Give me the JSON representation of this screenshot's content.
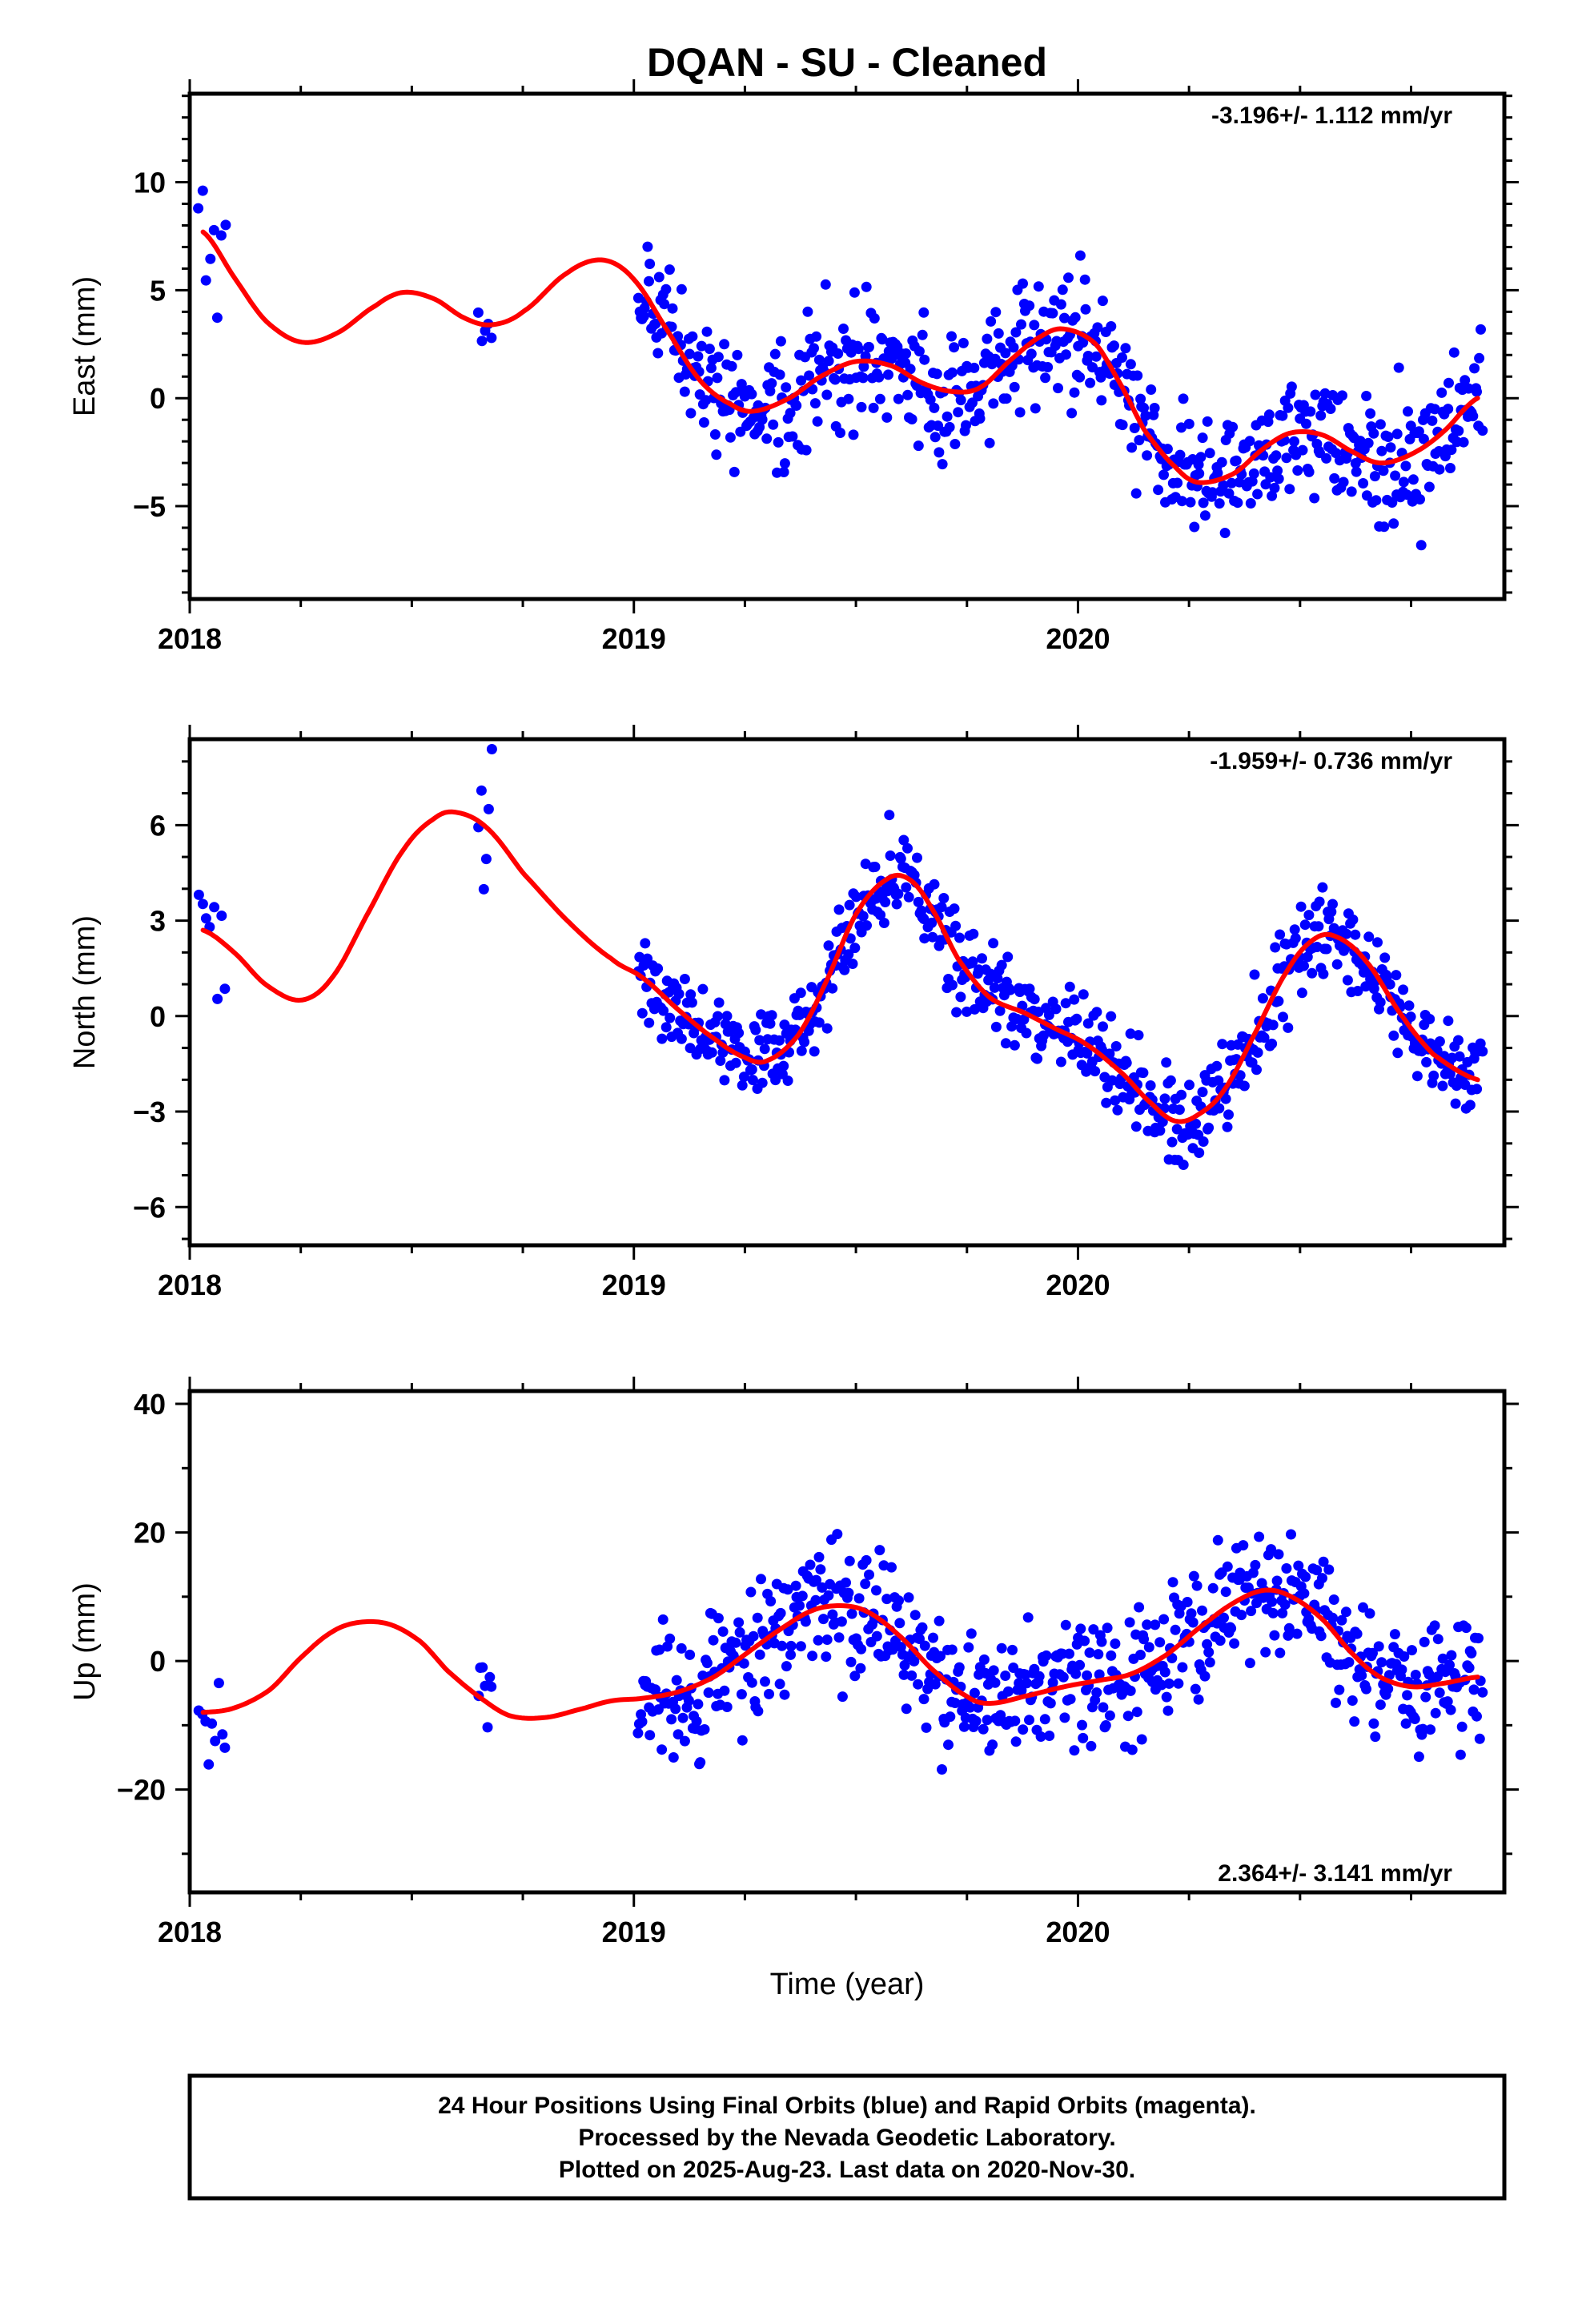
{
  "title": "DQAN  - SU - Cleaned",
  "x_axis_label": "Time (year)",
  "footer": {
    "line1": "24 Hour Positions Using Final Orbits (blue) and Rapid Orbits (magenta).",
    "line2": "Processed by the Nevada Geodetic Laboratory.",
    "line3": "Plotted on 2025-Aug-23. Last data on 2020-Nov-30."
  },
  "colors": {
    "points": "#0000ff",
    "fit": "#ff0000",
    "frame": "#000000"
  },
  "chart_data": [
    {
      "type": "scatter",
      "component": "East",
      "ylabel": "East (mm)",
      "rate_label": "-3.196+/- 1.112 mm/yr",
      "rate_position": "top-right",
      "xlim": [
        2018.0,
        2020.96
      ],
      "ylim": [
        -9.3,
        14.1
      ],
      "x_ticks": [
        2018,
        2019,
        2020
      ],
      "y_ticks": [
        -5,
        0,
        5,
        10
      ],
      "grid": false,
      "fit_points": [
        [
          2018.03,
          7.7
        ],
        [
          2018.1,
          5.6
        ],
        [
          2018.17,
          3.6
        ],
        [
          2018.25,
          2.6
        ],
        [
          2018.33,
          3.0
        ],
        [
          2018.42,
          4.3
        ],
        [
          2018.48,
          4.9
        ],
        [
          2018.55,
          4.6
        ],
        [
          2018.62,
          3.7
        ],
        [
          2018.68,
          3.4
        ],
        [
          2018.75,
          4.0
        ],
        [
          2018.85,
          5.8
        ],
        [
          2018.93,
          6.4
        ],
        [
          2019.0,
          5.5
        ],
        [
          2019.08,
          3.0
        ],
        [
          2019.15,
          0.8
        ],
        [
          2019.22,
          -0.3
        ],
        [
          2019.27,
          -0.6
        ],
        [
          2019.35,
          0.0
        ],
        [
          2019.42,
          1.0
        ],
        [
          2019.5,
          1.7
        ],
        [
          2019.58,
          1.5
        ],
        [
          2019.65,
          0.7
        ],
        [
          2019.72,
          0.3
        ],
        [
          2019.78,
          0.5
        ],
        [
          2019.85,
          1.8
        ],
        [
          2019.92,
          2.9
        ],
        [
          2019.97,
          3.2
        ],
        [
          2020.04,
          2.5
        ],
        [
          2020.1,
          0.5
        ],
        [
          2020.15,
          -1.5
        ],
        [
          2020.22,
          -3.2
        ],
        [
          2020.27,
          -3.9
        ],
        [
          2020.35,
          -3.5
        ],
        [
          2020.42,
          -2.3
        ],
        [
          2020.48,
          -1.6
        ],
        [
          2020.55,
          -1.7
        ],
        [
          2020.62,
          -2.5
        ],
        [
          2020.68,
          -3.0
        ],
        [
          2020.75,
          -2.6
        ],
        [
          2020.82,
          -1.6
        ],
        [
          2020.9,
          0.0
        ]
      ],
      "scatter": [
        {
          "segment": [
            2018.02,
            2018.08
          ],
          "n": 8,
          "scatter_sd": 2.5
        },
        {
          "segment": [
            2018.65,
            2018.68
          ],
          "n": 5,
          "scatter_sd": 2.8
        },
        {
          "segment": [
            2019.01,
            2020.91
          ],
          "n": 640,
          "scatter_sd": 2.3
        }
      ]
    },
    {
      "type": "scatter",
      "component": "North",
      "ylabel": "North (mm)",
      "rate_label": "-1.959+/- 0.736 mm/yr",
      "rate_position": "top-right",
      "xlim": [
        2018.0,
        2020.96
      ],
      "ylim": [
        -7.2,
        8.7
      ],
      "x_ticks": [
        2018,
        2019,
        2020
      ],
      "y_ticks": [
        -6,
        -3,
        0,
        3,
        6
      ],
      "grid": false,
      "fit_points": [
        [
          2018.03,
          2.7
        ],
        [
          2018.1,
          2.0
        ],
        [
          2018.17,
          1.0
        ],
        [
          2018.25,
          0.5
        ],
        [
          2018.32,
          1.2
        ],
        [
          2018.4,
          3.2
        ],
        [
          2018.48,
          5.2
        ],
        [
          2018.55,
          6.2
        ],
        [
          2018.6,
          6.4
        ],
        [
          2018.67,
          5.9
        ],
        [
          2018.75,
          4.5
        ],
        [
          2018.85,
          3.0
        ],
        [
          2018.95,
          1.8
        ],
        [
          2019.02,
          1.2
        ],
        [
          2019.1,
          0.2
        ],
        [
          2019.18,
          -0.7
        ],
        [
          2019.25,
          -1.3
        ],
        [
          2019.3,
          -1.4
        ],
        [
          2019.37,
          -0.6
        ],
        [
          2019.43,
          1.0
        ],
        [
          2019.5,
          3.2
        ],
        [
          2019.57,
          4.3
        ],
        [
          2019.62,
          4.3
        ],
        [
          2019.67,
          3.4
        ],
        [
          2019.73,
          1.8
        ],
        [
          2019.8,
          0.6
        ],
        [
          2019.88,
          0.1
        ],
        [
          2019.95,
          -0.4
        ],
        [
          2020.02,
          -0.9
        ],
        [
          2020.1,
          -1.8
        ],
        [
          2020.17,
          -2.8
        ],
        [
          2020.22,
          -3.3
        ],
        [
          2020.27,
          -3.1
        ],
        [
          2020.33,
          -2.3
        ],
        [
          2020.4,
          -0.5
        ],
        [
          2020.47,
          1.4
        ],
        [
          2020.53,
          2.4
        ],
        [
          2020.58,
          2.5
        ],
        [
          2020.65,
          1.7
        ],
        [
          2020.73,
          0.0
        ],
        [
          2020.8,
          -1.2
        ],
        [
          2020.9,
          -2.0
        ]
      ],
      "scatter": [
        {
          "segment": [
            2018.02,
            2018.08
          ],
          "n": 8,
          "scatter_sd": 2.6
        },
        {
          "segment": [
            2018.65,
            2018.68
          ],
          "n": 6,
          "scatter_sd": 2.7
        },
        {
          "segment": [
            2019.01,
            2020.91
          ],
          "n": 640,
          "scatter_sd": 1.2
        }
      ]
    },
    {
      "type": "scatter",
      "component": "Up",
      "ylabel": "Up (mm)",
      "rate_label": "2.364+/- 3.141 mm/yr",
      "rate_position": "bottom-right",
      "xlim": [
        2018.0,
        2020.96
      ],
      "ylim": [
        -36,
        42
      ],
      "x_ticks": [
        2018,
        2019,
        2020
      ],
      "y_ticks": [
        -20,
        0,
        20,
        40
      ],
      "grid": false,
      "fit_points": [
        [
          2018.03,
          -8.0
        ],
        [
          2018.1,
          -7.3
        ],
        [
          2018.18,
          -4.5
        ],
        [
          2018.25,
          0.5
        ],
        [
          2018.32,
          4.5
        ],
        [
          2018.38,
          6.0
        ],
        [
          2018.45,
          5.7
        ],
        [
          2018.52,
          3.0
        ],
        [
          2018.58,
          -1.5
        ],
        [
          2018.65,
          -5.5
        ],
        [
          2018.72,
          -8.5
        ],
        [
          2018.8,
          -8.8
        ],
        [
          2018.88,
          -7.5
        ],
        [
          2018.95,
          -6.2
        ],
        [
          2019.02,
          -5.8
        ],
        [
          2019.1,
          -4.8
        ],
        [
          2019.18,
          -2.5
        ],
        [
          2019.25,
          1.0
        ],
        [
          2019.32,
          4.5
        ],
        [
          2019.4,
          7.8
        ],
        [
          2019.47,
          8.6
        ],
        [
          2019.53,
          7.5
        ],
        [
          2019.6,
          3.8
        ],
        [
          2019.67,
          -1.2
        ],
        [
          2019.75,
          -5.5
        ],
        [
          2019.8,
          -6.6
        ],
        [
          2019.88,
          -5.5
        ],
        [
          2019.97,
          -4.0
        ],
        [
          2020.05,
          -3.0
        ],
        [
          2020.12,
          -2.0
        ],
        [
          2020.2,
          1.0
        ],
        [
          2020.27,
          5.0
        ],
        [
          2020.35,
          9.0
        ],
        [
          2020.42,
          11.0
        ],
        [
          2020.48,
          10.0
        ],
        [
          2020.55,
          6.5
        ],
        [
          2020.62,
          1.0
        ],
        [
          2020.68,
          -2.5
        ],
        [
          2020.75,
          -4.0
        ],
        [
          2020.82,
          -3.5
        ],
        [
          2020.9,
          -2.5
        ]
      ],
      "scatter": [
        {
          "segment": [
            2018.02,
            2018.08
          ],
          "n": 9,
          "scatter_sd": 7.0
        },
        {
          "segment": [
            2018.65,
            2018.68
          ],
          "n": 7,
          "scatter_sd": 9.0
        },
        {
          "segment": [
            2019.01,
            2020.91
          ],
          "n": 640,
          "scatter_sd": 8.0
        }
      ]
    }
  ]
}
